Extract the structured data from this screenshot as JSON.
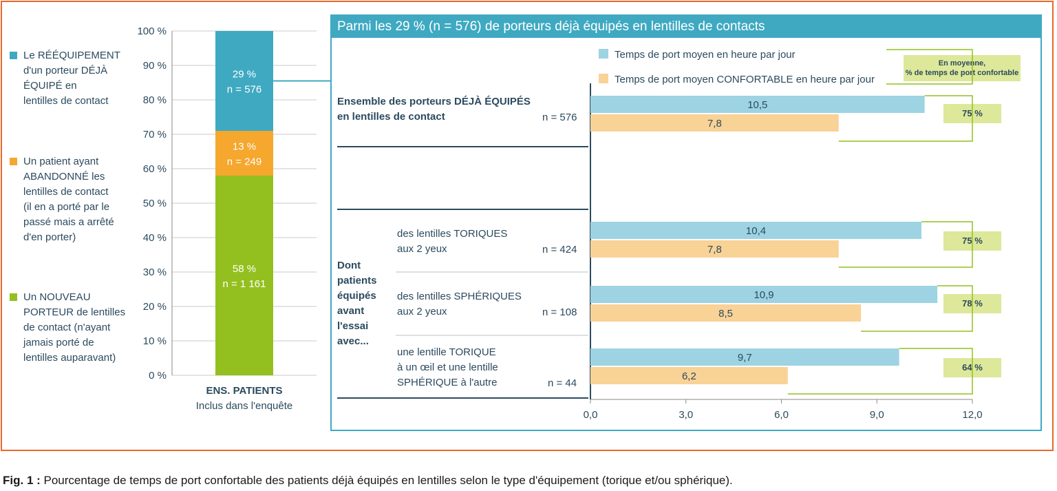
{
  "colors": {
    "frame": "#e8682a",
    "panel": "#3fa9c2",
    "blue_bar": "#9dd3e2",
    "orange_bar": "#f9d296",
    "stack_blue": "#3fa9c2",
    "stack_orange": "#f5a72e",
    "stack_green": "#93c01f",
    "pct_box": "#dde89a",
    "bracket": "#93c01f",
    "dark": "#2b4a5e"
  },
  "left_legend": [
    {
      "name": "reequipement",
      "color": "#3fa9c2",
      "text": [
        "Le RÉÉQUIPEMENT",
        "d'un porteur DÉJÀ",
        "ÉQUIPÉ en",
        "lentilles de contact"
      ]
    },
    {
      "name": "abandonne",
      "color": "#f5a72e",
      "text": [
        "Un patient ayant",
        "ABANDONNÉ les",
        "lentilles de contact",
        "(il en a porté par le",
        "passé mais a arrêté",
        "d'en porter)"
      ]
    },
    {
      "name": "nouveau",
      "color": "#93c01f",
      "text": [
        "Un NOUVEAU",
        "PORTEUR de lentilles",
        "de contact (n'ayant",
        "jamais porté de",
        "lentilles auparavant)"
      ]
    }
  ],
  "caption": {
    "label": "Fig. 1 :",
    "text": " Pourcentage de temps de port confortable des patients déjà équipés en lentilles selon le type d'équipement (torique et/ou sphérique)."
  },
  "panel_title": "Parmi les 29 % (n = 576) de porteurs déjà équipés en lentilles de contacts",
  "avg_box": [
    "En moyenne,",
    "% de temps de port confortable"
  ],
  "rows": {
    "ensemble": {
      "title": [
        "Ensemble des porteurs DÉJÀ ÉQUIPÉS",
        "en lentilles de contact"
      ],
      "n": "n = 576"
    },
    "dont": [
      "Dont",
      "patients",
      "équipés",
      "avant",
      "l'essai",
      "avec..."
    ],
    "toriques": {
      "title": [
        "des lentilles TORIQUES",
        "aux 2 yeux"
      ],
      "n": "n = 424"
    },
    "spheriques": {
      "title": [
        "des lentilles SPHÉRIQUES",
        "aux 2 yeux"
      ],
      "n": "n = 108"
    },
    "mixte": {
      "title": [
        "une lentille TORIQUE",
        "à un œil et une lentille",
        "SPHÉRIQUE à l'autre"
      ],
      "n": "n = 44"
    }
  },
  "chart_data": [
    {
      "type": "bar",
      "title": "",
      "stacked": true,
      "categories": [
        "ENS. PATIENTS"
      ],
      "category_sub": "Inclus dans l'enquête",
      "ylim": [
        0,
        100
      ],
      "yticks": [
        "100 %",
        "90 %",
        "80 %",
        "70 %",
        "60 %",
        "50 %",
        "40 %",
        "30 %",
        "20 %",
        "10 %",
        "0 %"
      ],
      "series": [
        {
          "name": "Un NOUVEAU PORTEUR",
          "values": [
            58
          ],
          "label": "58 %",
          "n": "n = 1 161",
          "color": "#93c01f"
        },
        {
          "name": "Un patient ayant ABANDONNÉ",
          "values": [
            13
          ],
          "label": "13 %",
          "n": "n = 249",
          "color": "#f5a72e"
        },
        {
          "name": "Le RÉÉQUIPEMENT",
          "values": [
            29
          ],
          "label": "29 %",
          "n": "n = 576",
          "color": "#3fa9c2"
        }
      ]
    },
    {
      "type": "bar",
      "orientation": "horizontal",
      "title": "Parmi les 29 % (n = 576) de porteurs déjà équipés en lentilles de contacts",
      "xlim": [
        0,
        12
      ],
      "xticks": [
        "0,0",
        "3,0",
        "6,0",
        "9,0",
        "12,0"
      ],
      "legend": [
        "Temps de port moyen en heure par jour",
        "Temps de port moyen CONFORTABLE en heure par jour"
      ],
      "categories": [
        "Ensemble des porteurs DÉJÀ ÉQUIPÉS",
        "des lentilles TORIQUES aux 2 yeux",
        "des lentilles SPHÉRIQUES aux 2 yeux",
        "une lentille TORIQUE à un œil et une lentille SPHÉRIQUE à l'autre"
      ],
      "series": [
        {
          "name": "Temps de port moyen en heure par jour",
          "values": [
            10.5,
            10.4,
            10.9,
            9.7
          ],
          "labels": [
            "10,5",
            "10,4",
            "10,9",
            "9,7"
          ]
        },
        {
          "name": "Temps de port moyen CONFORTABLE en heure par jour",
          "values": [
            7.8,
            7.8,
            8.5,
            6.2
          ],
          "labels": [
            "7,8",
            "7,8",
            "8,5",
            "6,2"
          ]
        }
      ],
      "percent_confortable": [
        "75 %",
        "75 %",
        "78 %",
        "64 %"
      ]
    }
  ]
}
